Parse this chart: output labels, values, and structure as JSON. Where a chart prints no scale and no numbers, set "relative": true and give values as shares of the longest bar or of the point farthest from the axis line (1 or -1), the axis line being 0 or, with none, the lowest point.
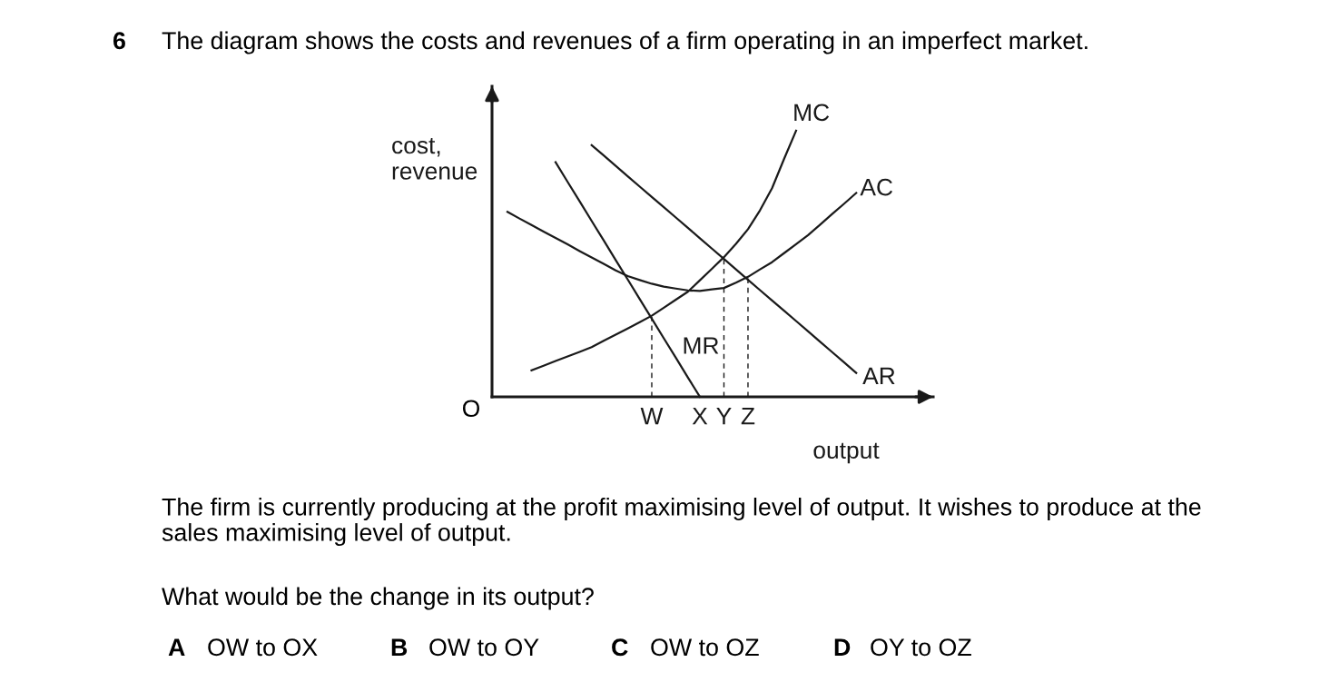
{
  "chart_data": {
    "type": "line",
    "relative": true,
    "title": "The diagram shows the costs and revenues of a firm operating in an imperfect market.",
    "xlabel": "output",
    "ylabel": "cost,\nrevenue",
    "tick_labels": "x",
    "line_style": "solid",
    "categories": [
      null,
      null,
      null,
      null,
      null,
      null,
      null,
      null,
      null,
      null,
      null,
      null,
      null,
      "W",
      null,
      null,
      null,
      "X",
      null,
      "Y",
      null,
      "Z",
      null,
      null,
      null,
      null,
      null,
      null,
      null,
      null,
      null,
      null,
      null,
      null,
      null,
      null,
      null
    ],
    "series": [
      {
        "name": "MC",
        "color": "#1a1a1a",
        "values": [
          null,
          null,
          null,
          0.1,
          0.117,
          0.135,
          0.152,
          0.169,
          0.187,
          0.211,
          0.234,
          0.257,
          0.281,
          0.305,
          0.335,
          0.365,
          0.395,
          0.438,
          0.481,
          0.525,
          0.575,
          0.63,
          0.701,
          0.784,
          0.894,
          1.0,
          null,
          null,
          null,
          null,
          null,
          null,
          null,
          null,
          null,
          null,
          null
        ]
      },
      {
        "name": "AC",
        "color": "#1a1a1a",
        "values": [
          null,
          0.695,
          0.67,
          0.646,
          0.621,
          0.597,
          0.573,
          0.548,
          0.524,
          0.5,
          0.475,
          0.454,
          0.439,
          0.425,
          0.414,
          0.407,
          0.4,
          0.398,
          0.404,
          0.409,
          0.429,
          0.451,
          0.479,
          0.506,
          0.54,
          0.574,
          0.608,
          0.647,
          0.687,
          0.726,
          0.766,
          null,
          null,
          null,
          null,
          null,
          null
        ]
      },
      {
        "name": "AR",
        "color": "#1a1a1a",
        "values": [
          null,
          null,
          null,
          null,
          null,
          null,
          null,
          null,
          0.946,
          0.907,
          0.868,
          0.829,
          0.79,
          0.751,
          0.713,
          0.674,
          0.635,
          0.596,
          0.557,
          0.518,
          0.479,
          0.44,
          0.401,
          0.362,
          0.324,
          0.285,
          0.246,
          0.207,
          0.168,
          0.129,
          0.09,
          null,
          null,
          null,
          null,
          null,
          null
        ]
      },
      {
        "name": "MR",
        "color": "#1a1a1a",
        "values": [
          null,
          null,
          null,
          null,
          null,
          0.882,
          0.808,
          0.735,
          0.661,
          0.588,
          0.514,
          0.441,
          0.367,
          0.294,
          0.22,
          0.147,
          0.073,
          0.0,
          null,
          null,
          null,
          null,
          null,
          null,
          null,
          null,
          null,
          null,
          null,
          null,
          null,
          null,
          null,
          null,
          null,
          null,
          null
        ]
      },
      {
        "color": "#1a1a1a",
        "line_style": "dashed",
        "x": [
          "W",
          "W"
        ],
        "values": [
          0,
          0.3
        ]
      },
      {
        "color": "#1a1a1a",
        "line_style": "dashed",
        "x": [
          "Y",
          "Y"
        ],
        "values": [
          0,
          0.52
        ]
      },
      {
        "color": "#1a1a1a",
        "line_style": "dashed",
        "x": [
          "Z",
          "Z"
        ],
        "values": [
          0,
          0.447
        ]
      }
    ],
    "annotations": [
      "6",
      "O",
      "The firm is currently producing at the profit maximising level of output. It wishes to produce at the\nsales maximising level of output.",
      "What would be the change in its output?",
      "A",
      "OW to OX",
      "B",
      "OW to OY",
      "C",
      "OW to OZ",
      "D",
      "OY to OZ"
    ]
  }
}
